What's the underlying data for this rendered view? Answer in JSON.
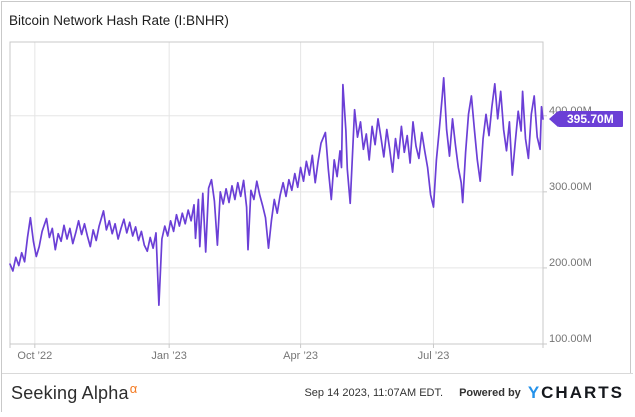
{
  "title": "Bitcoin Network Hash Rate (I:BNHR)",
  "badge": {
    "label": "395.70M"
  },
  "colors": {
    "line": "#6B3FD6",
    "badge_bg": "#6B3FD6",
    "badge_text": "#ffffff",
    "grid": "#e5e5e5",
    "plot_border": "#c9c9c9",
    "axis_text": "#757575",
    "title_text": "#1d1d1d",
    "brand_text": "#2d2d2d",
    "alpha_orange": "#F4791F",
    "footer_text": "#333333",
    "ycharts_blue": "#2492EA",
    "ycharts_dark": "#15181D"
  },
  "footer": {
    "brand": "Seeking Alpha",
    "brand_sup": "α",
    "timestamp": "Sep 14 2023, 11:07AM EDT.",
    "powered_by": "Powered by",
    "ycharts_y": "Y",
    "ycharts_rest": "CHARTS"
  },
  "chart_data": {
    "type": "line",
    "title": "Bitcoin Network Hash Rate (I:BNHR)",
    "xlabel": "",
    "ylabel": "",
    "grid": true,
    "legend": "none",
    "x_range_days": [
      0,
      365
    ],
    "x_range_span": "Sep 14 2022 to Sep 14 2023",
    "y_range": [
      100,
      497
    ],
    "y_unit": "M",
    "last_value": 395.7,
    "x_ticks": [
      {
        "day": 17,
        "label": "Oct ’22"
      },
      {
        "day": 109,
        "label": "Jan ’23"
      },
      {
        "day": 199,
        "label": "Apr ’23"
      },
      {
        "day": 290,
        "label": "Jul ’23"
      }
    ],
    "y_ticks": [
      {
        "value": 100,
        "label": "100.00M"
      },
      {
        "value": 200,
        "label": "200.00M"
      },
      {
        "value": 300,
        "label": "300.00M"
      },
      {
        "value": 400,
        "label": "400.00M"
      }
    ],
    "series": [
      {
        "name": "Bitcoin Network Hash Rate",
        "color": "#6B3FD6",
        "points_day_value": [
          [
            0,
            205
          ],
          [
            2,
            196
          ],
          [
            4,
            214
          ],
          [
            6,
            203
          ],
          [
            8,
            220
          ],
          [
            10,
            208
          ],
          [
            12,
            240
          ],
          [
            14,
            266
          ],
          [
            16,
            235
          ],
          [
            18,
            215
          ],
          [
            20,
            228
          ],
          [
            22,
            248
          ],
          [
            25,
            265
          ],
          [
            27,
            240
          ],
          [
            29,
            252
          ],
          [
            31,
            224
          ],
          [
            33,
            245
          ],
          [
            35,
            235
          ],
          [
            37,
            256
          ],
          [
            39,
            238
          ],
          [
            41,
            252
          ],
          [
            43,
            232
          ],
          [
            45,
            246
          ],
          [
            47,
            262
          ],
          [
            49,
            244
          ],
          [
            51,
            258
          ],
          [
            53,
            242
          ],
          [
            55,
            228
          ],
          [
            57,
            250
          ],
          [
            59,
            236
          ],
          [
            61,
            255
          ],
          [
            64,
            275
          ],
          [
            66,
            250
          ],
          [
            68,
            262
          ],
          [
            70,
            245
          ],
          [
            72,
            258
          ],
          [
            74,
            238
          ],
          [
            76,
            252
          ],
          [
            78,
            264
          ],
          [
            80,
            246
          ],
          [
            82,
            260
          ],
          [
            84,
            242
          ],
          [
            86,
            254
          ],
          [
            88,
            236
          ],
          [
            90,
            248
          ],
          [
            92,
            230
          ],
          [
            94,
            222
          ],
          [
            96,
            240
          ],
          [
            98,
            226
          ],
          [
            100,
            246
          ],
          [
            102,
            151
          ],
          [
            104,
            238
          ],
          [
            106,
            255
          ],
          [
            108,
            242
          ],
          [
            110,
            262
          ],
          [
            112,
            248
          ],
          [
            114,
            270
          ],
          [
            116,
            255
          ],
          [
            118,
            272
          ],
          [
            120,
            258
          ],
          [
            122,
            276
          ],
          [
            124,
            262
          ],
          [
            126,
            283
          ],
          [
            127,
            239
          ],
          [
            129,
            290
          ],
          [
            130,
            228
          ],
          [
            132,
            298
          ],
          [
            134,
            221
          ],
          [
            136,
            305
          ],
          [
            138,
            316
          ],
          [
            140,
            288
          ],
          [
            142,
            230
          ],
          [
            144,
            300
          ],
          [
            146,
            284
          ],
          [
            148,
            304
          ],
          [
            150,
            286
          ],
          [
            152,
            308
          ],
          [
            154,
            290
          ],
          [
            156,
            312
          ],
          [
            158,
            294
          ],
          [
            160,
            315
          ],
          [
            162,
            280
          ],
          [
            163,
            224
          ],
          [
            165,
            302
          ],
          [
            167,
            290
          ],
          [
            169,
            314
          ],
          [
            171,
            296
          ],
          [
            173,
            282
          ],
          [
            175,
            266
          ],
          [
            177,
            226
          ],
          [
            179,
            262
          ],
          [
            181,
            290
          ],
          [
            183,
            272
          ],
          [
            185,
            296
          ],
          [
            187,
            312
          ],
          [
            189,
            294
          ],
          [
            191,
            316
          ],
          [
            193,
            302
          ],
          [
            195,
            324
          ],
          [
            197,
            306
          ],
          [
            199,
            332
          ],
          [
            201,
            314
          ],
          [
            203,
            340
          ],
          [
            205,
            322
          ],
          [
            207,
            348
          ],
          [
            209,
            312
          ],
          [
            211,
            340
          ],
          [
            213,
            364
          ],
          [
            216,
            378
          ],
          [
            218,
            330
          ],
          [
            220,
            290
          ],
          [
            222,
            342
          ],
          [
            224,
            320
          ],
          [
            226,
            354
          ],
          [
            227,
            332
          ],
          [
            228,
            441
          ],
          [
            230,
            380
          ],
          [
            231,
            330
          ],
          [
            233,
            285
          ],
          [
            236,
            408
          ],
          [
            238,
            372
          ],
          [
            240,
            392
          ],
          [
            242,
            356
          ],
          [
            244,
            376
          ],
          [
            246,
            342
          ],
          [
            248,
            386
          ],
          [
            250,
            362
          ],
          [
            252,
            396
          ],
          [
            254,
            372
          ],
          [
            256,
            346
          ],
          [
            258,
            382
          ],
          [
            260,
            356
          ],
          [
            262,
            326
          ],
          [
            264,
            370
          ],
          [
            266,
            344
          ],
          [
            268,
            386
          ],
          [
            270,
            352
          ],
          [
            272,
            374
          ],
          [
            274,
            338
          ],
          [
            276,
            392
          ],
          [
            278,
            360
          ],
          [
            280,
            344
          ],
          [
            282,
            378
          ],
          [
            284,
            354
          ],
          [
            286,
            332
          ],
          [
            288,
            296
          ],
          [
            290,
            280
          ],
          [
            292,
            342
          ],
          [
            294,
            382
          ],
          [
            296,
            425
          ],
          [
            297,
            450
          ],
          [
            299,
            382
          ],
          [
            301,
            347
          ],
          [
            303,
            396
          ],
          [
            305,
            362
          ],
          [
            307,
            332
          ],
          [
            309,
            312
          ],
          [
            310,
            286
          ],
          [
            312,
            352
          ],
          [
            314,
            402
          ],
          [
            316,
            426
          ],
          [
            318,
            382
          ],
          [
            320,
            342
          ],
          [
            322,
            314
          ],
          [
            324,
            370
          ],
          [
            326,
            402
          ],
          [
            328,
            374
          ],
          [
            330,
            412
          ],
          [
            332,
            442
          ],
          [
            334,
            396
          ],
          [
            336,
            432
          ],
          [
            338,
            382
          ],
          [
            340,
            354
          ],
          [
            342,
            392
          ],
          [
            344,
            322
          ],
          [
            346,
            366
          ],
          [
            348,
            406
          ],
          [
            350,
            380
          ],
          [
            351,
            432
          ],
          [
            353,
            370
          ],
          [
            355,
            344
          ],
          [
            357,
            402
          ],
          [
            359,
            426
          ],
          [
            361,
            372
          ],
          [
            363,
            356
          ],
          [
            364,
            412
          ],
          [
            365,
            395.7
          ]
        ]
      }
    ]
  }
}
